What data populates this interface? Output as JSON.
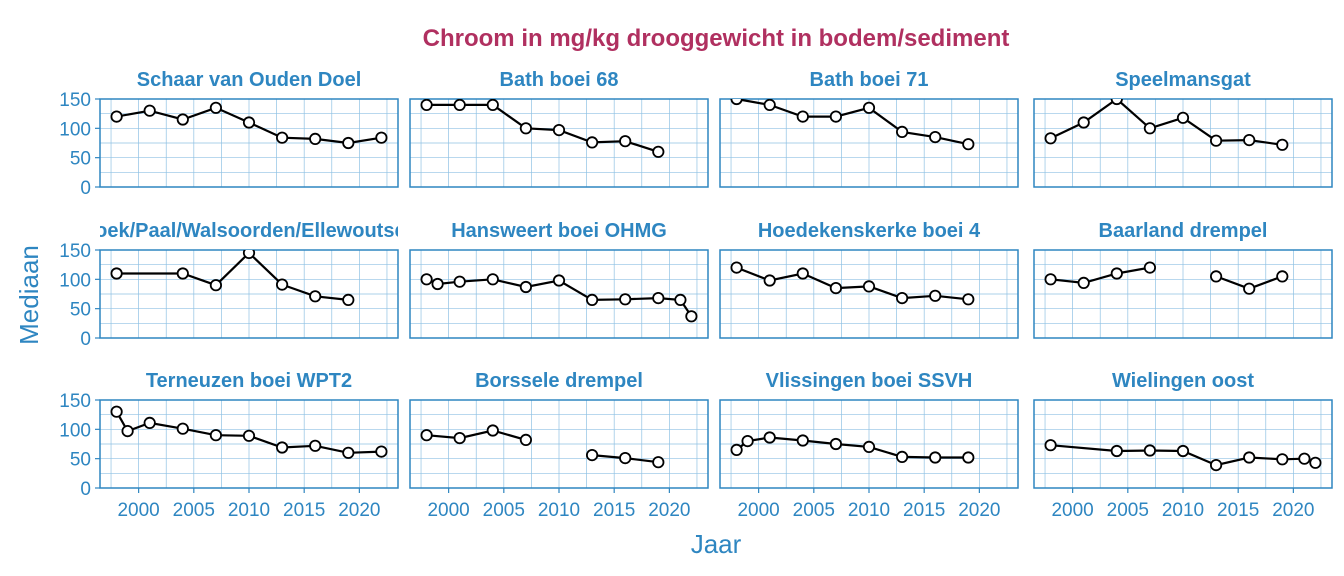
{
  "chart_data": {
    "type": "line",
    "title": "Chroom in mg/kg drooggewicht in bodem/sediment",
    "xlabel": "Jaar",
    "ylabel": "Mediaan",
    "xlim": [
      1996.5,
      2023.5
    ],
    "ylim": [
      0,
      150
    ],
    "xticks": [
      2000,
      2005,
      2010,
      2015,
      2020
    ],
    "yticks": [
      0,
      50,
      100,
      150
    ],
    "grid": true,
    "colors": {
      "title": "#B03060",
      "accent": "#2E86C1",
      "grid": "#8FC1E3",
      "line": "#000000",
      "marker_fill": "#FFFFFF"
    },
    "panels": [
      {
        "name": "Schaar van Ouden Doel",
        "segments": [
          [
            [
              1998,
              120
            ],
            [
              2001,
              130
            ],
            [
              2004,
              115
            ],
            [
              2007,
              135
            ],
            [
              2010,
              110
            ],
            [
              2013,
              84
            ],
            [
              2016,
              82
            ],
            [
              2019,
              75
            ],
            [
              2022,
              84
            ]
          ]
        ]
      },
      {
        "name": "Bath boei 68",
        "segments": [
          [
            [
              1998,
              140
            ],
            [
              2001,
              140
            ],
            [
              2004,
              140
            ],
            [
              2007,
              100
            ],
            [
              2010,
              97
            ],
            [
              2013,
              76
            ],
            [
              2016,
              78
            ],
            [
              2019,
              60
            ]
          ]
        ]
      },
      {
        "name": "Bath boei 71",
        "segments": [
          [
            [
              1998,
              150
            ],
            [
              2001,
              140
            ],
            [
              2004,
              120
            ],
            [
              2007,
              120
            ],
            [
              2010,
              135
            ],
            [
              2013,
              94
            ],
            [
              2016,
              85
            ],
            [
              2019,
              73
            ]
          ]
        ]
      },
      {
        "name": "Speelmansgat",
        "segments": [
          [
            [
              1998,
              83
            ],
            [
              2001,
              110
            ],
            [
              2004,
              150
            ],
            [
              2007,
              100
            ],
            [
              2010,
              118
            ],
            [
              2013,
              79
            ],
            [
              2016,
              80
            ],
            [
              2019,
              72
            ]
          ]
        ]
      },
      {
        "name": "Hansweert/Waarde/Ossenisse/Baalhoek/Paal/Walsoorden/Ellewoutsdijk/Kruiningen Perkpolder (drempel)",
        "segments": [
          [
            [
              1998,
              110
            ],
            [
              2004,
              110
            ],
            [
              2007,
              90
            ],
            [
              2010,
              145
            ],
            [
              2013,
              91
            ],
            [
              2016,
              71
            ],
            [
              2019,
              65
            ]
          ]
        ]
      },
      {
        "name": "Hansweert boei OHMG",
        "segments": [
          [
            [
              1998,
              100
            ],
            [
              1999,
              92
            ],
            [
              2001,
              96
            ],
            [
              2004,
              100
            ],
            [
              2007,
              87
            ],
            [
              2010,
              98
            ],
            [
              2013,
              65
            ],
            [
              2016,
              66
            ],
            [
              2019,
              68
            ],
            [
              2021,
              65
            ],
            [
              2022,
              37
            ]
          ]
        ]
      },
      {
        "name": "Hoedekenskerke boei 4",
        "segments": [
          [
            [
              1998,
              120
            ],
            [
              2001,
              98
            ],
            [
              2004,
              110
            ],
            [
              2007,
              85
            ],
            [
              2010,
              88
            ],
            [
              2013,
              68
            ],
            [
              2016,
              72
            ],
            [
              2019,
              66
            ]
          ]
        ]
      },
      {
        "name": "Baarland drempel",
        "segments": [
          [
            [
              1998,
              100
            ],
            [
              2001,
              94
            ],
            [
              2004,
              110
            ],
            [
              2007,
              120
            ]
          ],
          [
            [
              2013,
              105
            ],
            [
              2016,
              84
            ],
            [
              2019,
              105
            ]
          ]
        ]
      },
      {
        "name": "Terneuzen boei WPT2",
        "segments": [
          [
            [
              1998,
              130
            ],
            [
              1999,
              97
            ],
            [
              2001,
              111
            ],
            [
              2004,
              101
            ],
            [
              2007,
              90
            ],
            [
              2010,
              89
            ],
            [
              2013,
              69
            ],
            [
              2016,
              72
            ],
            [
              2019,
              60
            ],
            [
              2022,
              62
            ]
          ]
        ]
      },
      {
        "name": "Borssele drempel",
        "segments": [
          [
            [
              1998,
              90
            ],
            [
              2001,
              85
            ],
            [
              2004,
              98
            ],
            [
              2007,
              82
            ]
          ],
          [
            [
              2013,
              56
            ],
            [
              2016,
              51
            ],
            [
              2019,
              44
            ]
          ]
        ]
      },
      {
        "name": "Vlissingen boei SSVH",
        "segments": [
          [
            [
              1998,
              65
            ],
            [
              1999,
              80
            ],
            [
              2001,
              86
            ],
            [
              2004,
              81
            ],
            [
              2007,
              75
            ],
            [
              2010,
              70
            ],
            [
              2013,
              53
            ],
            [
              2016,
              52
            ],
            [
              2019,
              52
            ]
          ]
        ]
      },
      {
        "name": "Wielingen oost",
        "segments": [
          [
            [
              1998,
              73
            ],
            [
              2004,
              63
            ],
            [
              2007,
              64
            ],
            [
              2010,
              63
            ],
            [
              2013,
              39
            ],
            [
              2016,
              52
            ],
            [
              2019,
              49
            ],
            [
              2021,
              50
            ],
            [
              2022,
              43
            ]
          ]
        ]
      }
    ]
  }
}
